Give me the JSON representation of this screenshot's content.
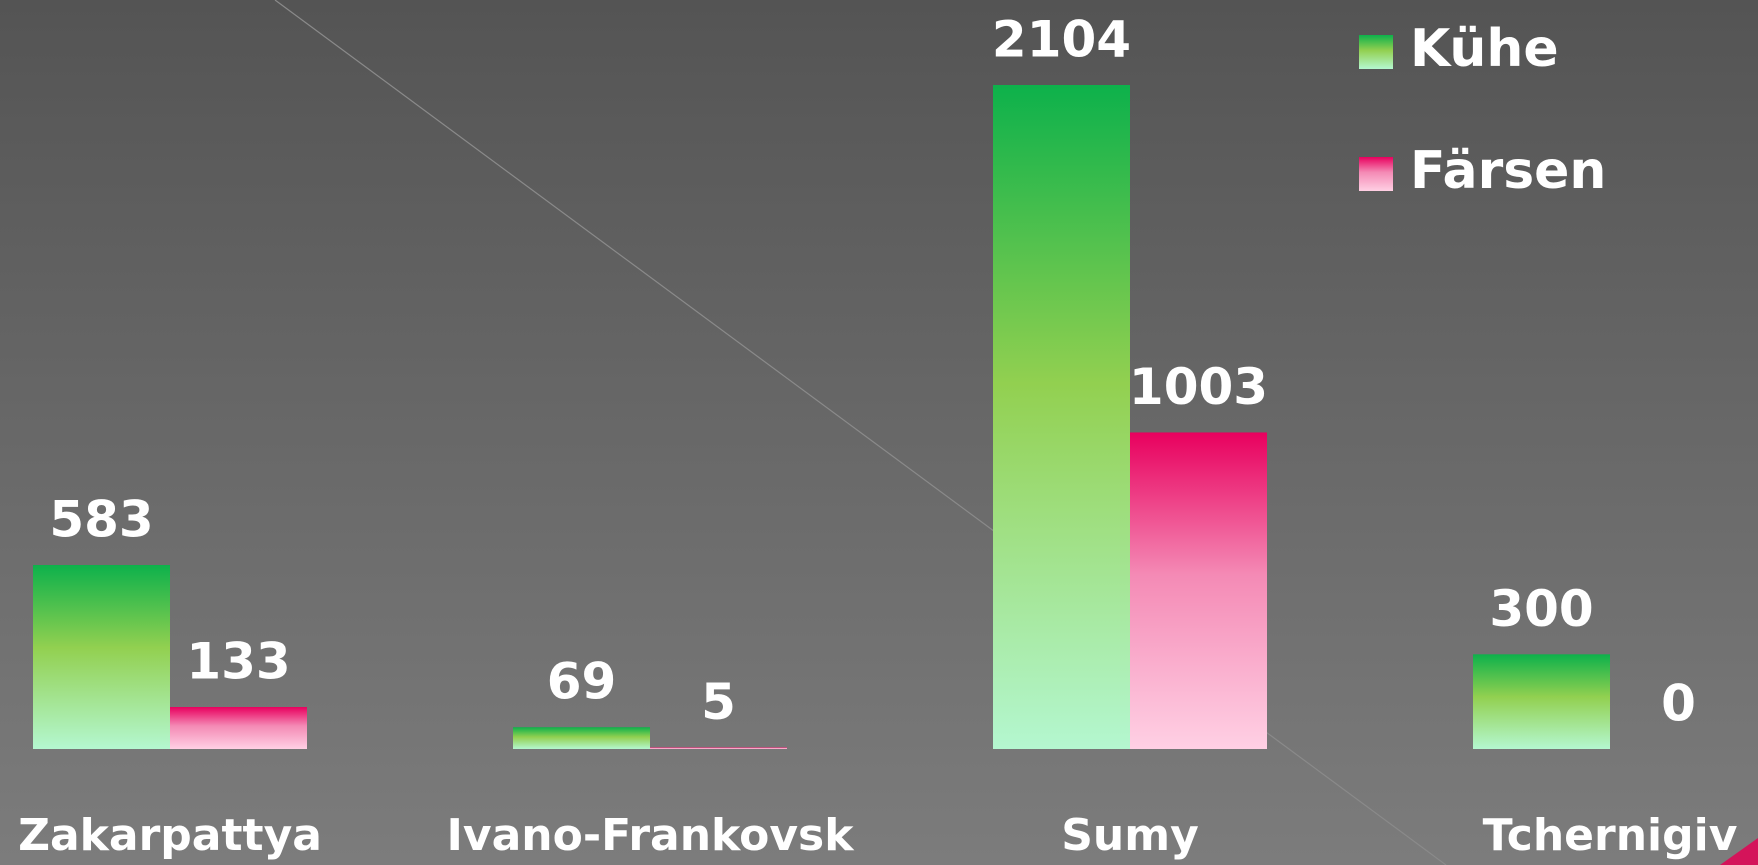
{
  "chart_data": {
    "type": "bar",
    "categories": [
      "Zakarpattya",
      "Ivano-Frankovsk",
      "Sumy",
      "Tchernigiv"
    ],
    "series": [
      {
        "name": "Kühe",
        "color": "#0db14b",
        "values": [
          583,
          69,
          2104,
          300
        ]
      },
      {
        "name": "Färsen",
        "color": "#e8005e",
        "values": [
          133,
          5,
          1003,
          0
        ]
      }
    ]
  }
}
